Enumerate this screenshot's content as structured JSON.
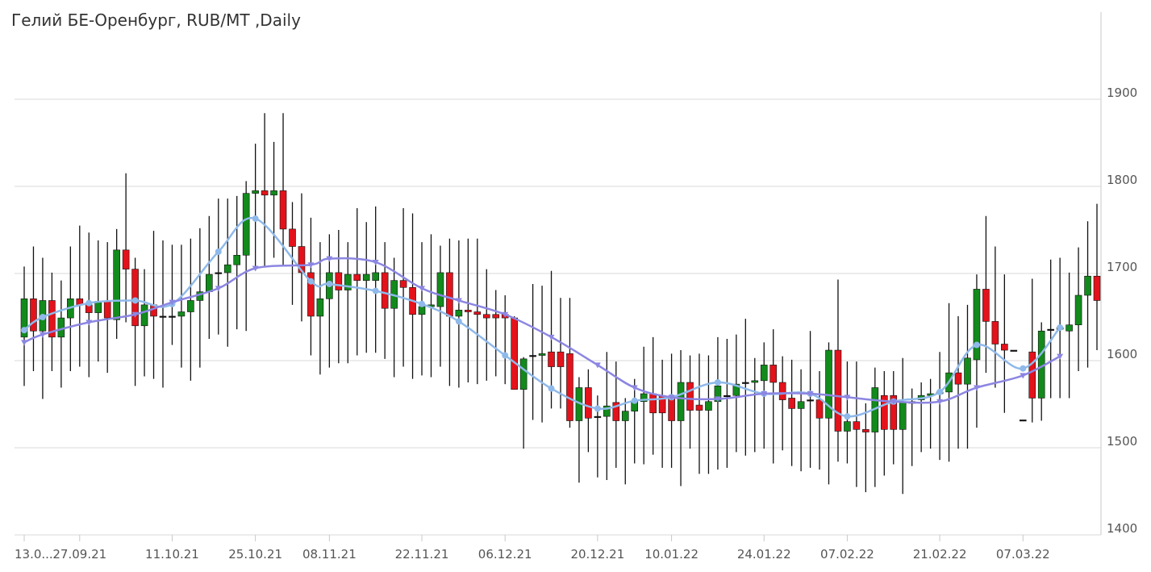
{
  "chart_data": {
    "type": "candlestick",
    "title": "Гелий БЕ-Оренбург, RUB/MT ,Daily",
    "categories": [
      "13.0...",
      null,
      null,
      null,
      null,
      null,
      "27.09.21",
      null,
      null,
      null,
      null,
      null,
      null,
      null,
      null,
      null,
      "11.10.21",
      null,
      null,
      null,
      null,
      null,
      null,
      null,
      null,
      "25.10.21",
      null,
      null,
      null,
      null,
      null,
      null,
      null,
      "08.11.21",
      null,
      null,
      null,
      null,
      null,
      null,
      null,
      null,
      null,
      "22.11.21",
      null,
      null,
      null,
      null,
      null,
      null,
      null,
      null,
      "06.12.21",
      null,
      null,
      null,
      null,
      null,
      null,
      null,
      null,
      null,
      "20.12.21",
      null,
      null,
      null,
      null,
      null,
      null,
      null,
      "10.01.22",
      null,
      null,
      null,
      null,
      null,
      null,
      null,
      null,
      null,
      "24.01.22",
      null,
      null,
      null,
      null,
      null,
      null,
      null,
      null,
      "07.02.22",
      null,
      null,
      null,
      null,
      null,
      null,
      null,
      null,
      null,
      "21.02.22",
      null,
      null,
      null,
      null,
      null,
      null,
      null,
      null,
      "07.03.22",
      null,
      null,
      null,
      null,
      null,
      null,
      null,
      null
    ],
    "open": [
      1627,
      1671,
      1634,
      1669,
      1627,
      1649,
      1671,
      1664,
      1655,
      1668,
      1647,
      1727,
      1705,
      1640,
      1664,
      1651,
      1651,
      1651,
      1656,
      1669,
      1679,
      1701,
      1701,
      1710,
      1721,
      1792,
      1795,
      1790,
      1795,
      1751,
      1731,
      1701,
      1651,
      1671,
      1701,
      1681,
      1699,
      1692,
      1692,
      1701,
      1660,
      1692,
      1684,
      1653,
      1662,
      1662,
      1701,
      1651,
      1658,
      1656,
      1653,
      1653,
      1653,
      1649,
      1567,
      1606,
      1606,
      1610,
      1610,
      1608,
      1531,
      1569,
      1536,
      1536,
      1552,
      1531,
      1542,
      1553,
      1562,
      1560,
      1558,
      1531,
      1575,
      1549,
      1543,
      1553,
      1560,
      1560,
      1575,
      1575,
      1577,
      1595,
      1575,
      1557,
      1545,
      1555,
      1555,
      1534,
      1612,
      1519,
      1530,
      1521,
      1518,
      1560,
      1560,
      1521,
      1551,
      1555,
      1560,
      1562,
      1564,
      1586,
      1573,
      1601,
      1682,
      1645,
      1619,
      1612,
      1532,
      1610,
      1557,
      1636,
      1636,
      1634,
      1641,
      1675,
      1697
    ],
    "high": [
      1708,
      1731,
      1718,
      1701,
      1692,
      1731,
      1755,
      1747,
      1738,
      1736,
      1751,
      1815,
      1718,
      1705,
      1749,
      1738,
      1733,
      1733,
      1740,
      1752,
      1766,
      1786,
      1786,
      1789,
      1806,
      1849,
      1884,
      1851,
      1884,
      1782,
      1792,
      1764,
      1736,
      1745,
      1750,
      1736,
      1775,
      1759,
      1777,
      1736,
      1718,
      1775,
      1769,
      1736,
      1745,
      1732,
      1740,
      1738,
      1740,
      1740,
      1705,
      1681,
      1675,
      1651,
      1604,
      1688,
      1686,
      1703,
      1672,
      1672,
      1581,
      1590,
      1560,
      1610,
      1599,
      1557,
      1579,
      1616,
      1627,
      1601,
      1608,
      1612,
      1606,
      1608,
      1606,
      1627,
      1625,
      1630,
      1648,
      1603,
      1621,
      1636,
      1605,
      1601,
      1590,
      1634,
      1588,
      1621,
      1693,
      1599,
      1599,
      1551,
      1592,
      1588,
      1588,
      1603,
      1568,
      1575,
      1579,
      1610,
      1666,
      1651,
      1664,
      1699,
      1766,
      1731,
      1699,
      1612,
      1532,
      1694,
      1644,
      1716,
      1718,
      1701,
      1730,
      1760,
      1780
    ],
    "low": [
      1571,
      1588,
      1556,
      1588,
      1569,
      1588,
      1593,
      1581,
      1599,
      1586,
      1625,
      1644,
      1571,
      1582,
      1579,
      1569,
      1618,
      1592,
      1577,
      1592,
      1625,
      1630,
      1616,
      1636,
      1634,
      1708,
      1708,
      1718,
      1708,
      1664,
      1645,
      1606,
      1584,
      1592,
      1597,
      1597,
      1606,
      1609,
      1609,
      1602,
      1581,
      1593,
      1579,
      1583,
      1581,
      1593,
      1571,
      1569,
      1575,
      1573,
      1577,
      1582,
      1573,
      1567,
      1499,
      1532,
      1529,
      1545,
      1545,
      1523,
      1460,
      1495,
      1466,
      1463,
      1477,
      1458,
      1482,
      1481,
      1492,
      1477,
      1477,
      1456,
      1499,
      1470,
      1470,
      1475,
      1477,
      1495,
      1491,
      1495,
      1499,
      1482,
      1497,
      1479,
      1473,
      1477,
      1475,
      1458,
      1484,
      1482,
      1455,
      1449,
      1455,
      1468,
      1481,
      1447,
      1479,
      1495,
      1499,
      1486,
      1484,
      1499,
      1499,
      1523,
      1586,
      1569,
      1540,
      1612,
      1532,
      1529,
      1531,
      1557,
      1557,
      1557,
      1588,
      1592,
      1612
    ],
    "close": [
      1671,
      1634,
      1669,
      1627,
      1649,
      1671,
      1664,
      1655,
      1668,
      1649,
      1727,
      1705,
      1640,
      1664,
      1651,
      1651,
      1651,
      1656,
      1669,
      1679,
      1699,
      1701,
      1710,
      1721,
      1792,
      1795,
      1790,
      1795,
      1751,
      1731,
      1701,
      1651,
      1671,
      1701,
      1681,
      1699,
      1692,
      1699,
      1701,
      1660,
      1692,
      1684,
      1653,
      1662,
      1664,
      1701,
      1651,
      1658,
      1656,
      1653,
      1649,
      1649,
      1649,
      1567,
      1602,
      1606,
      1608,
      1593,
      1593,
      1531,
      1569,
      1534,
      1536,
      1548,
      1531,
      1542,
      1553,
      1562,
      1540,
      1540,
      1531,
      1575,
      1543,
      1543,
      1553,
      1571,
      1560,
      1573,
      1575,
      1577,
      1595,
      1575,
      1555,
      1545,
      1553,
      1555,
      1534,
      1612,
      1519,
      1530,
      1521,
      1518,
      1569,
      1521,
      1521,
      1553,
      1553,
      1560,
      1562,
      1564,
      1586,
      1573,
      1603,
      1682,
      1645,
      1619,
      1612,
      1612,
      1532,
      1557,
      1634,
      1636,
      1638,
      1641,
      1675,
      1697,
      1669
    ],
    "up_color": "#128a1c",
    "down_color": "#e3121b",
    "overlays": [
      {
        "color": "#8fb9ea",
        "marker": "circle",
        "index": [
          0,
          2,
          7,
          12,
          16,
          21,
          25,
          31,
          33,
          38,
          43,
          47,
          52,
          57,
          62,
          66,
          70,
          75,
          80,
          85,
          89,
          94,
          99,
          103,
          108,
          112
        ],
        "values": [
          1635,
          1650,
          1666,
          1669,
          1665,
          1725,
          1763,
          1691,
          1688,
          1680,
          1665,
          1645,
          1606,
          1568,
          1545,
          1554,
          1558,
          1575,
          1562,
          1562,
          1536,
          1553,
          1564,
          1618,
          1591,
          1638
        ]
      },
      {
        "color": "#8c86e2",
        "marker": "triangle",
        "index": [
          0,
          2,
          7,
          12,
          16,
          21,
          25,
          31,
          33,
          38,
          43,
          47,
          52,
          57,
          62,
          66,
          70,
          75,
          80,
          85,
          89,
          94,
          99,
          103,
          108,
          112
        ],
        "values": [
          1621,
          1630,
          1644,
          1653,
          1667,
          1683,
          1706,
          1710,
          1717,
          1713,
          1683,
          1669,
          1653,
          1627,
          1595,
          1569,
          1558,
          1556,
          1562,
          1562,
          1558,
          1553,
          1553,
          1569,
          1583,
          1605
        ]
      }
    ],
    "ylim": [
      1400,
      2000
    ],
    "yticks": [
      1400,
      1500,
      1600,
      1700,
      1800,
      1900
    ],
    "grid": true
  }
}
